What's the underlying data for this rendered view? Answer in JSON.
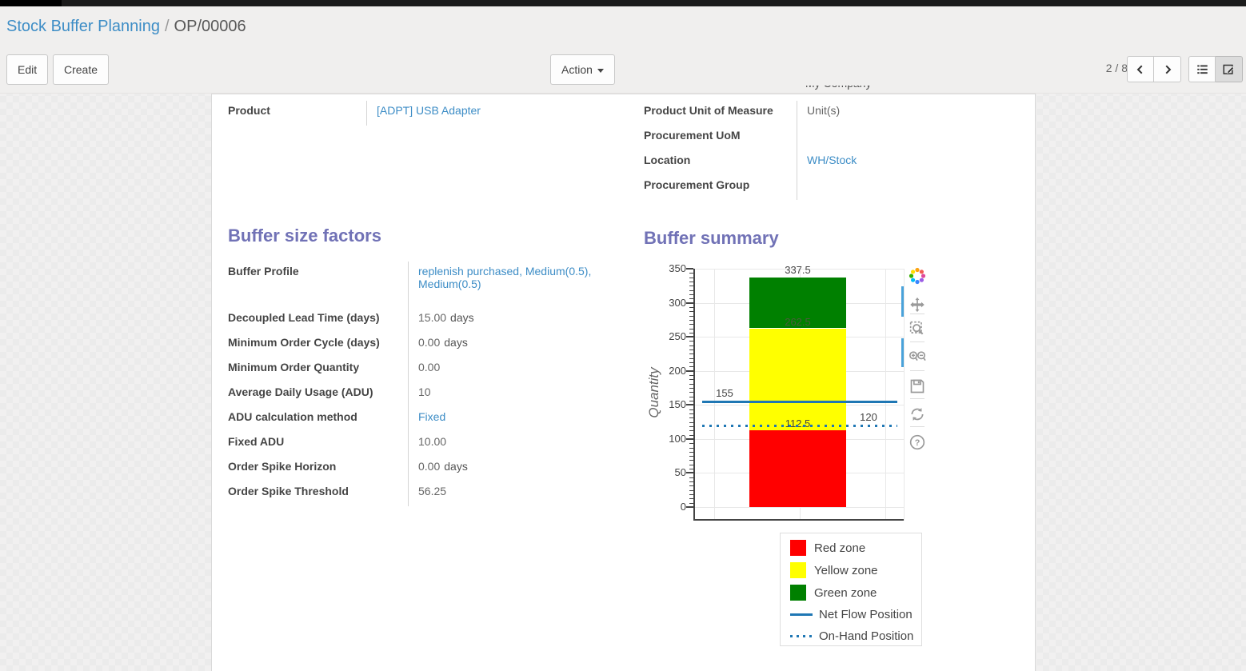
{
  "breadcrumb": {
    "parent": "Stock Buffer Planning",
    "separator": "/",
    "current": "OP/00006"
  },
  "toolbar": {
    "edit_label": "Edit",
    "create_label": "Create",
    "action_label": "Action",
    "pager": "2 / 8"
  },
  "clipped_company": "My Company",
  "form": {
    "left_fields": [
      {
        "label": "Product",
        "value": "[ADPT] USB Adapter",
        "link": true,
        "suffix": ""
      }
    ],
    "right_fields": [
      {
        "label": "Product Unit of Measure",
        "value": "Unit(s)",
        "link": false,
        "suffix": ""
      },
      {
        "label": "Procurement UoM",
        "value": "",
        "link": false,
        "suffix": ""
      },
      {
        "label": "Location",
        "value": "WH/Stock",
        "link": true,
        "suffix": ""
      },
      {
        "label": "Procurement Group",
        "value": "",
        "link": false,
        "suffix": ""
      }
    ],
    "factors_heading": "Buffer size factors",
    "factors_fields": [
      {
        "label": "Buffer Profile",
        "value": "replenish purchased, Medium(0.5), Medium(0.5)",
        "link": true,
        "suffix": "",
        "tall": true
      },
      {
        "label": "Decoupled Lead Time (days)",
        "value": "15.00",
        "link": false,
        "suffix": "days"
      },
      {
        "label": "Minimum Order Cycle (days)",
        "value": "0.00",
        "link": false,
        "suffix": "days"
      },
      {
        "label": "Minimum Order Quantity",
        "value": "0.00",
        "link": false,
        "suffix": ""
      },
      {
        "label": "Average Daily Usage (ADU)",
        "value": "10",
        "link": false,
        "suffix": ""
      },
      {
        "label": "ADU calculation method",
        "value": "Fixed",
        "link": true,
        "suffix": ""
      },
      {
        "label": "Fixed ADU",
        "value": "10.00",
        "link": false,
        "suffix": ""
      },
      {
        "label": "Order Spike Horizon",
        "value": "0.00",
        "link": false,
        "suffix": "days"
      },
      {
        "label": "Order Spike Threshold",
        "value": "56.25",
        "link": false,
        "suffix": ""
      }
    ],
    "summary_heading": "Buffer summary"
  },
  "chart_data": {
    "type": "bar",
    "title": "Buffer summary",
    "ylabel": "Quantity",
    "ylim": [
      0,
      350
    ],
    "yticks": [
      0,
      50,
      100,
      150,
      200,
      250,
      300,
      350
    ],
    "grid": true,
    "zones": [
      {
        "name": "Red zone",
        "color": "#ff0000",
        "from": 0,
        "to": 112.5,
        "label": "112.5"
      },
      {
        "name": "Yellow zone",
        "color": "#ffff00",
        "from": 112.5,
        "to": 262.5,
        "label": "262.5"
      },
      {
        "name": "Green zone",
        "color": "#008000",
        "from": 262.5,
        "to": 337.5,
        "label": "337.5"
      }
    ],
    "lines": [
      {
        "name": "Net Flow Position",
        "value": 155,
        "style": "solid",
        "color": "#1f77b4",
        "label": "155",
        "label_side": "left"
      },
      {
        "name": "On-Hand Position",
        "value": 120,
        "style": "dotted",
        "color": "#1f77b4",
        "label": "120",
        "label_side": "right"
      }
    ],
    "legend_position": "below-right",
    "legend": [
      {
        "text": "Red zone",
        "swatch": "square",
        "color": "#ff0000"
      },
      {
        "text": "Yellow zone",
        "swatch": "square",
        "color": "#ffff00"
      },
      {
        "text": "Green zone",
        "swatch": "square",
        "color": "#008000"
      },
      {
        "text": "Net Flow Position",
        "swatch": "solid-line",
        "color": "#1f77b4"
      },
      {
        "text": "On-Hand Position",
        "swatch": "dotted-line",
        "color": "#1f77b4"
      }
    ]
  },
  "icons": {
    "modebar": [
      "plotly-logo-icon",
      "pan-icon",
      "box-zoom-icon",
      "zoom-in-out-icon",
      "save-icon",
      "reset-axes-icon",
      "help-icon"
    ],
    "view_switcher": [
      "list-view-icon",
      "form-view-icon"
    ],
    "pager": [
      "chevron-left-icon",
      "chevron-right-icon"
    ]
  },
  "colors": {
    "heading": "#7172b6",
    "link": "#3d8dc6",
    "net_flow_line": "#1f77b4",
    "red_zone": "#ff0000",
    "yellow_zone": "#ffff00",
    "green_zone": "#008000",
    "modebar_active": "#49a2da"
  }
}
